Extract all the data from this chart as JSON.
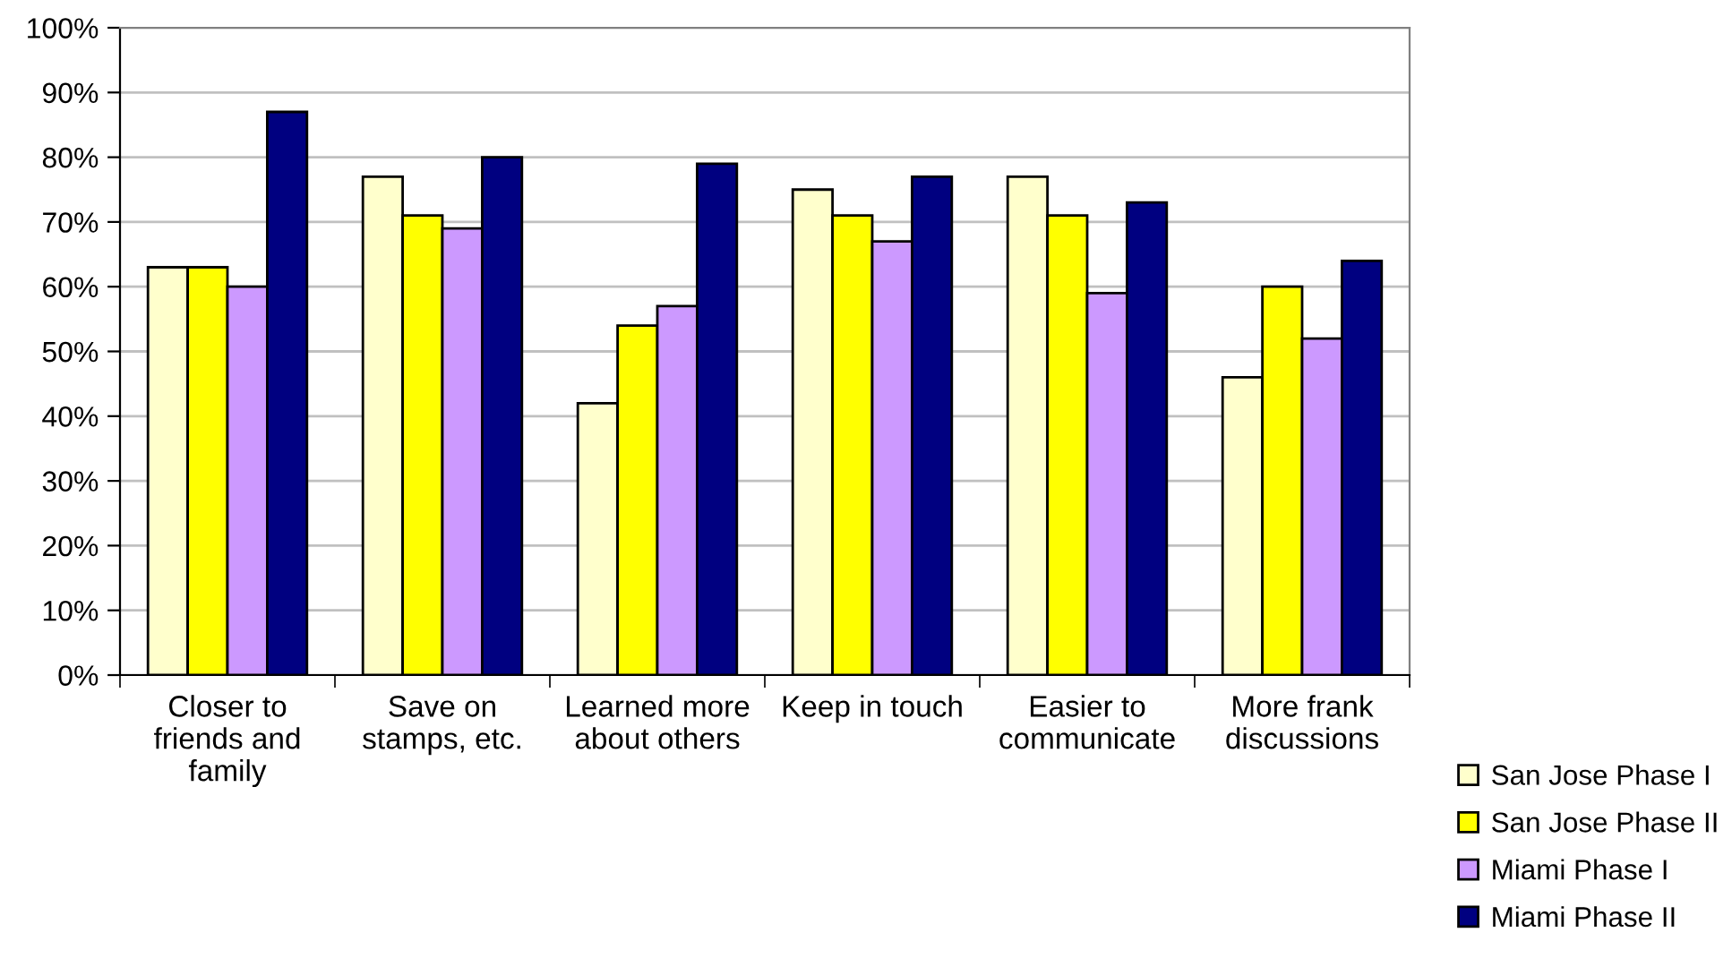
{
  "chart_data": {
    "type": "bar",
    "categories": [
      "Closer to\nfriends and\nfamily",
      "Save on\nstamps, etc.",
      "Learned more\nabout others",
      "Keep in touch",
      "Easier to\ncommunicate",
      "More frank\ndiscussions"
    ],
    "series": [
      {
        "name": "San Jose Phase I",
        "color": "#ffffcc",
        "values": [
          63,
          77,
          42,
          75,
          77,
          46
        ]
      },
      {
        "name": "San Jose Phase II",
        "color": "#ffff00",
        "values": [
          63,
          71,
          54,
          71,
          71,
          60
        ]
      },
      {
        "name": "Miami Phase I",
        "color": "#cc99ff",
        "values": [
          60,
          69,
          57,
          67,
          59,
          52
        ]
      },
      {
        "name": "Miami Phase II",
        "color": "#000080",
        "values": [
          87,
          80,
          79,
          77,
          73,
          64
        ]
      }
    ],
    "ylim": [
      0,
      100
    ],
    "yticks": [
      {
        "value": 0,
        "label": "0%"
      },
      {
        "value": 10,
        "label": "10%"
      },
      {
        "value": 20,
        "label": "20%"
      },
      {
        "value": 30,
        "label": "30%"
      },
      {
        "value": 40,
        "label": "40%"
      },
      {
        "value": 50,
        "label": "50%"
      },
      {
        "value": 60,
        "label": "60%"
      },
      {
        "value": 70,
        "label": "70%"
      },
      {
        "value": 80,
        "label": "80%"
      },
      {
        "value": 90,
        "label": "90%"
      },
      {
        "value": 100,
        "label": "100%"
      }
    ],
    "grid": "y",
    "legend": "bottom right"
  }
}
